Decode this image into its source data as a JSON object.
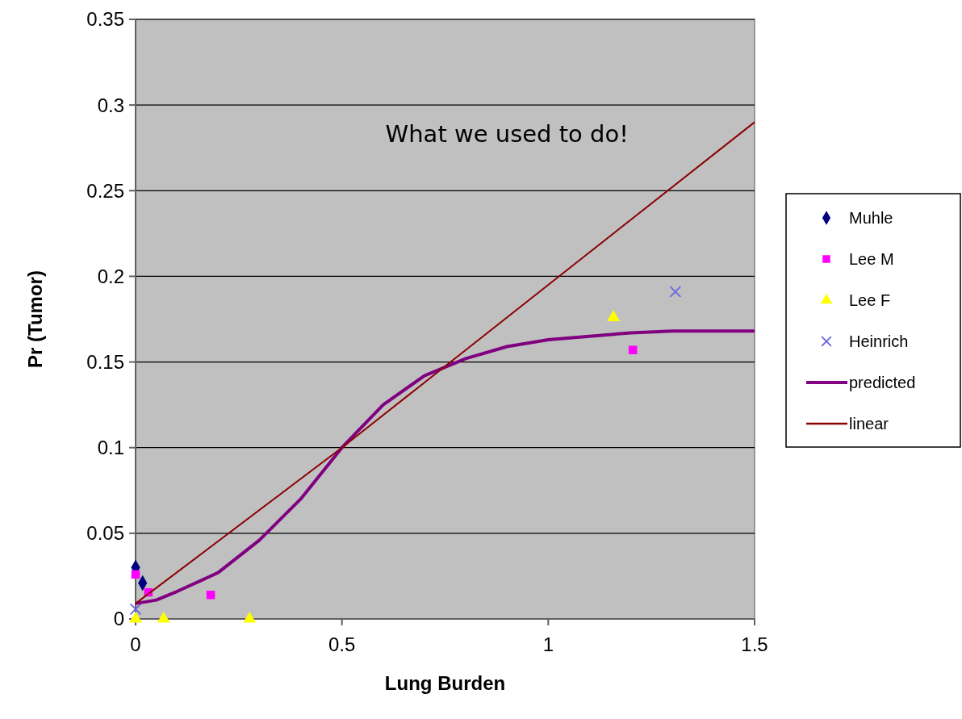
{
  "chart_data": {
    "type": "scatter",
    "xlabel": "Lung Burden",
    "ylabel": "Pr (Tumor)",
    "xlim": [
      0,
      1.5
    ],
    "xticks": [
      0,
      0.5,
      1,
      1.5
    ],
    "ylim": [
      0,
      0.35
    ],
    "yticks": [
      0,
      0.05,
      0.1,
      0.15,
      0.2,
      0.25,
      0.3,
      0.35
    ],
    "grid": "y",
    "legend": "right",
    "annotations": [
      "What we used to do!"
    ],
    "series": [
      {
        "name": "Muhle",
        "marker": "diamond",
        "color": "#000080",
        "x": [
          0,
          0.017
        ],
        "values": [
          0.03,
          0.021
        ]
      },
      {
        "name": "Lee M",
        "marker": "square",
        "color": "#ff00ff",
        "x": [
          0,
          0.031,
          0.182,
          1.205
        ],
        "values": [
          0.026,
          0.0155,
          0.014,
          0.157
        ]
      },
      {
        "name": "Lee F",
        "marker": "triangle",
        "color": "#ffff00",
        "x": [
          0,
          0.068,
          0.276,
          1.158
        ],
        "values": [
          0,
          0,
          0,
          0.176
        ]
      },
      {
        "name": "Heinrich",
        "marker": "cross",
        "color": "#6666dd",
        "x": [
          0,
          1.308
        ],
        "values": [
          0.0057,
          0.191
        ]
      },
      {
        "name": "predicted",
        "type": "line",
        "marker": "none",
        "color": "#800080",
        "x": [
          0,
          0.05,
          0.1,
          0.2,
          0.3,
          0.4,
          0.5,
          0.6,
          0.7,
          0.8,
          0.9,
          1.0,
          1.1,
          1.2,
          1.3,
          1.5
        ],
        "values": [
          0.009,
          0.011,
          0.016,
          0.027,
          0.046,
          0.07,
          0.1,
          0.125,
          0.142,
          0.152,
          0.159,
          0.163,
          0.165,
          0.167,
          0.168,
          0.168
        ]
      },
      {
        "name": "linear",
        "type": "line",
        "marker": "none",
        "color": "#8b0000",
        "x": [
          0,
          0.5,
          1,
          1.5
        ],
        "values": [
          0.009,
          0.1,
          0.195,
          0.29
        ]
      }
    ]
  }
}
